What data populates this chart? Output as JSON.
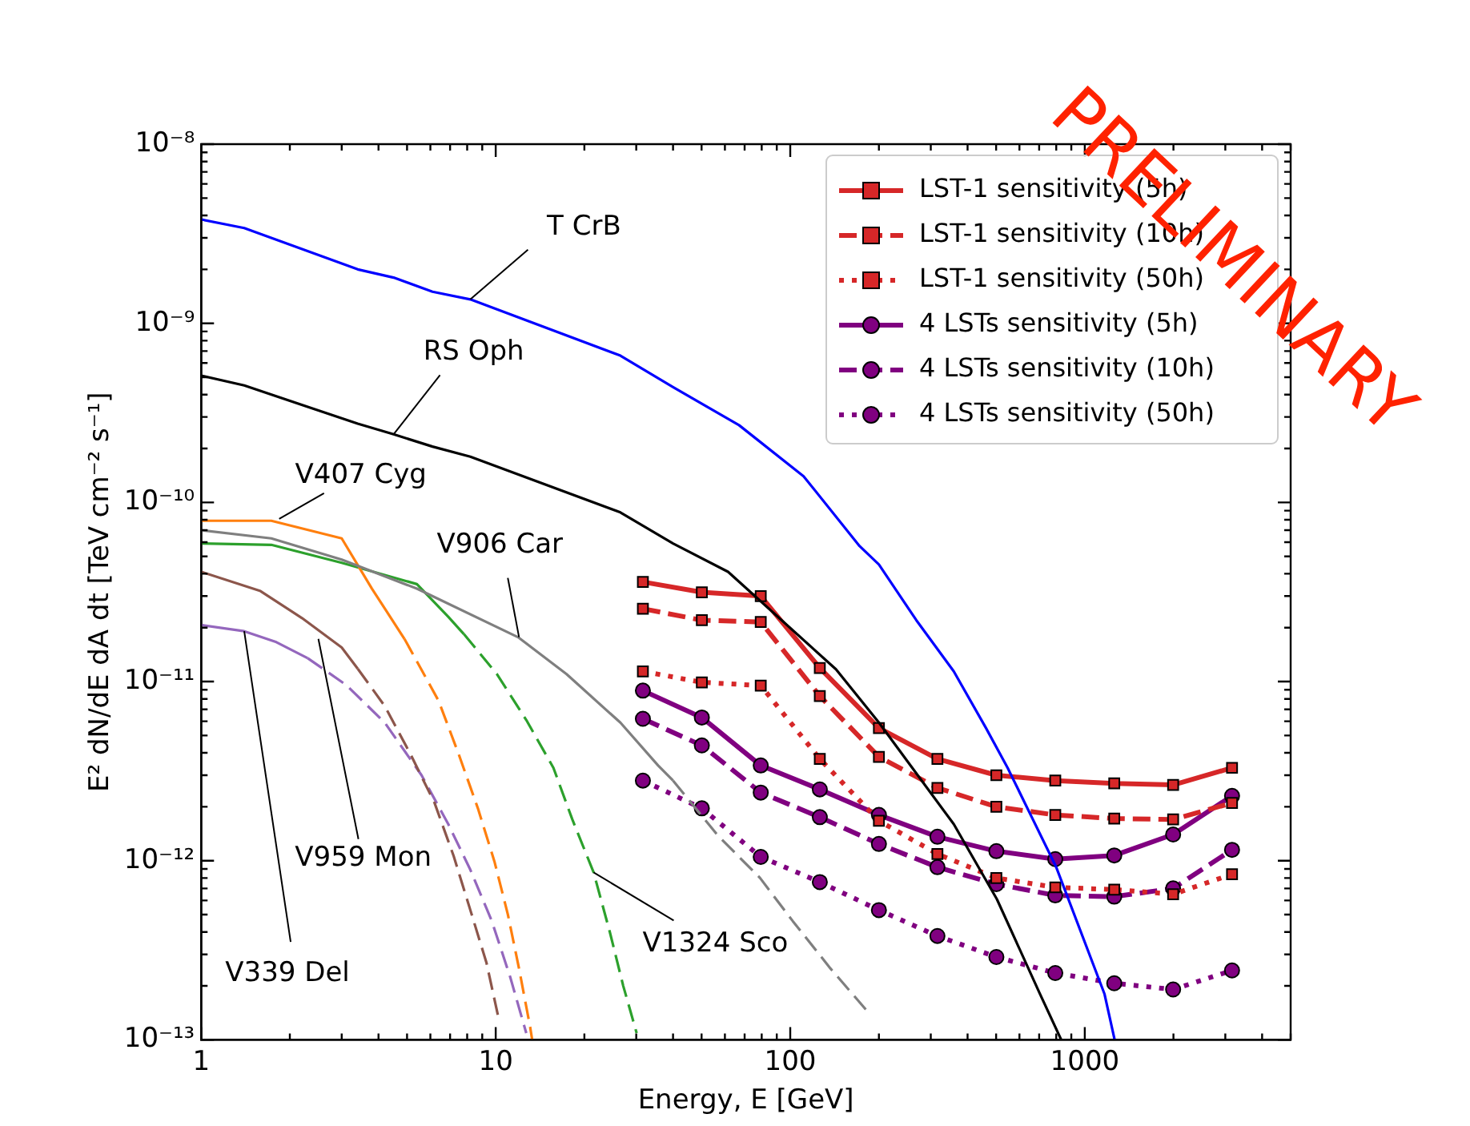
{
  "chart_data": {
    "type": "line",
    "xlabel": "Energy, E [GeV]",
    "ylabel": "E² dN/dE dA dt [TeV cm⁻² s⁻¹]",
    "log": "xy",
    "legend": "top right",
    "xlim": [
      1,
      5000
    ],
    "ylim": [
      1e-13,
      1e-08
    ],
    "xticks": [
      1,
      {
        "value": 2,
        "label": null
      },
      {
        "value": 3,
        "label": null
      },
      {
        "value": 4,
        "label": null
      },
      {
        "value": 5,
        "label": null
      },
      {
        "value": 6,
        "label": null
      },
      {
        "value": 7,
        "label": null
      },
      {
        "value": 8,
        "label": null
      },
      {
        "value": 9,
        "label": null
      },
      10,
      {
        "value": 20,
        "label": null
      },
      {
        "value": 30,
        "label": null
      },
      {
        "value": 40,
        "label": null
      },
      {
        "value": 50,
        "label": null
      },
      {
        "value": 60,
        "label": null
      },
      {
        "value": 70,
        "label": null
      },
      {
        "value": 80,
        "label": null
      },
      {
        "value": 90,
        "label": null
      },
      100,
      {
        "value": 200,
        "label": null
      },
      {
        "value": 300,
        "label": null
      },
      {
        "value": 400,
        "label": null
      },
      {
        "value": 500,
        "label": null
      },
      {
        "value": 600,
        "label": null
      },
      {
        "value": 700,
        "label": null
      },
      {
        "value": 800,
        "label": null
      },
      {
        "value": 900,
        "label": null
      },
      1000,
      {
        "value": 2000,
        "label": null
      },
      {
        "value": 3000,
        "label": null
      },
      {
        "value": 4000,
        "label": null
      },
      {
        "value": 5000,
        "label": null
      }
    ],
    "yticks": [
      {
        "value": 1e-13,
        "label": "10⁻¹³"
      },
      {
        "value": 2e-13,
        "label": null
      },
      {
        "value": 3e-13,
        "label": null
      },
      {
        "value": 4e-13,
        "label": null
      },
      {
        "value": 5e-13,
        "label": null
      },
      {
        "value": 6e-13,
        "label": null
      },
      {
        "value": 7e-13,
        "label": null
      },
      {
        "value": 8e-13,
        "label": null
      },
      {
        "value": 9e-13,
        "label": null
      },
      {
        "value": 1e-12,
        "label": "10⁻¹²"
      },
      {
        "value": 2e-12,
        "label": null
      },
      {
        "value": 3e-12,
        "label": null
      },
      {
        "value": 4e-12,
        "label": null
      },
      {
        "value": 5e-12,
        "label": null
      },
      {
        "value": 6e-12,
        "label": null
      },
      {
        "value": 7e-12,
        "label": null
      },
      {
        "value": 8e-12,
        "label": null
      },
      {
        "value": 9e-12,
        "label": null
      },
      {
        "value": 1e-11,
        "label": "10⁻¹¹"
      },
      {
        "value": 2e-11,
        "label": null
      },
      {
        "value": 3e-11,
        "label": null
      },
      {
        "value": 4e-11,
        "label": null
      },
      {
        "value": 5e-11,
        "label": null
      },
      {
        "value": 6e-11,
        "label": null
      },
      {
        "value": 7e-11,
        "label": null
      },
      {
        "value": 8e-11,
        "label": null
      },
      {
        "value": 9e-11,
        "label": null
      },
      {
        "value": 1e-10,
        "label": "10⁻¹⁰"
      },
      {
        "value": 2e-10,
        "label": null
      },
      {
        "value": 3e-10,
        "label": null
      },
      {
        "value": 4e-10,
        "label": null
      },
      {
        "value": 5e-10,
        "label": null
      },
      {
        "value": 6e-10,
        "label": null
      },
      {
        "value": 7e-10,
        "label": null
      },
      {
        "value": 8e-10,
        "label": null
      },
      {
        "value": 9e-10,
        "label": null
      },
      {
        "value": 1e-09,
        "label": "10⁻⁹"
      },
      {
        "value": 2e-09,
        "label": null
      },
      {
        "value": 3e-09,
        "label": null
      },
      {
        "value": 4e-09,
        "label": null
      },
      {
        "value": 5e-09,
        "label": null
      },
      {
        "value": 6e-09,
        "label": null
      },
      {
        "value": 7e-09,
        "label": null
      },
      {
        "value": 8e-09,
        "label": null
      },
      {
        "value": 9e-09,
        "label": null
      },
      {
        "value": 1e-08,
        "label": "10⁻⁸"
      }
    ],
    "series": [
      {
        "color": "#0000ff",
        "marker": "none",
        "line_style": "solid",
        "x": [
          1,
          1.4,
          3.4,
          4.5,
          6.1,
          8.2,
          26.5,
          40,
          67,
          111,
          172,
          200,
          268,
          359,
          462,
          547,
          800,
          1167,
          1263
        ],
        "values": [
          3.8e-09,
          3.4e-09,
          2e-09,
          1.8e-09,
          1.5e-09,
          1.36e-09,
          6.6e-10,
          4.4e-10,
          2.7e-10,
          1.4e-10,
          5.7e-11,
          4.5e-11,
          2.2e-11,
          1.14e-11,
          5.5e-12,
          3.3e-12,
          9.2e-13,
          1.8e-13,
          1e-13
        ]
      },
      {
        "color": "#000000",
        "marker": "none",
        "line_style": "solid",
        "x": [
          1,
          1.4,
          3.4,
          4.5,
          6.1,
          8.2,
          26.5,
          40,
          61.5,
          143,
          200,
          359,
          503,
          705,
          832
        ],
        "values": [
          5.1e-10,
          4.5e-10,
          2.75e-10,
          2.4e-10,
          2.05e-10,
          1.8e-10,
          8.8e-11,
          5.9e-11,
          4.1e-11,
          1.17e-11,
          5.9e-12,
          1.6e-12,
          6.1e-13,
          1.8e-13,
          1e-13
        ]
      },
      {
        "color": "#7f7f7f",
        "marker": "none",
        "line_style": "solid",
        "x": [
          1,
          1.73,
          3.0,
          5.4,
          11.9,
          17.4,
          26.5,
          35.6,
          40
        ],
        "values": [
          7e-11,
          6.3e-11,
          4.8e-11,
          3.3e-11,
          1.77e-11,
          1.1e-11,
          5.9e-12,
          3.4e-12,
          2.8e-12
        ]
      },
      {
        "color": "#7f7f7f",
        "marker": "none",
        "line_style": "dashed",
        "x": [
          40,
          56.6,
          79,
          102,
          137,
          183
        ],
        "values": [
          2.8e-12,
          1.39e-12,
          8e-13,
          4.6e-13,
          2.5e-13,
          1.44e-13
        ]
      },
      {
        "color": "#ff7f0e",
        "marker": "none",
        "line_style": "solid",
        "x": [
          1,
          1.73,
          3.0,
          3.8,
          4.9
        ],
        "values": [
          7.9e-11,
          7.9e-11,
          6.3e-11,
          3.3e-11,
          1.73e-11
        ]
      },
      {
        "color": "#ff7f0e",
        "marker": "none",
        "line_style": "dashed",
        "x": [
          4.9,
          6.4,
          7.5,
          8.7,
          9.9,
          11,
          12,
          13.1,
          13.3
        ],
        "values": [
          1.73e-11,
          7.8e-12,
          3.9e-12,
          1.96e-12,
          9.9e-13,
          5e-13,
          2.5e-13,
          1.17e-13,
          1e-13
        ]
      },
      {
        "color": "#2ca02c",
        "marker": "none",
        "line_style": "solid",
        "x": [
          1,
          1.73,
          3.0,
          5.4,
          6.9,
          7.8
        ],
        "values": [
          5.9e-11,
          5.8e-11,
          4.6e-11,
          3.5e-11,
          2.3e-11,
          1.84e-11
        ]
      },
      {
        "color": "#2ca02c",
        "marker": "none",
        "line_style": "dashed",
        "x": [
          7.8,
          10.1,
          12.7,
          15.7,
          18.2,
          21.5,
          24.4,
          27.1,
          30.1
        ],
        "values": [
          1.84e-11,
          1.1e-11,
          6.1e-12,
          3.3e-12,
          1.7e-12,
          8.6e-13,
          4e-13,
          2e-13,
          1.09e-13
        ]
      },
      {
        "color": "#8c564b",
        "marker": "none",
        "line_style": "solid",
        "x": [
          1,
          1.59,
          2.2,
          3.0,
          3.4
        ],
        "values": [
          4.1e-11,
          3.2e-11,
          2.26e-11,
          1.55e-11,
          1.18e-11
        ]
      },
      {
        "color": "#8c564b",
        "marker": "none",
        "line_style": "dashed",
        "x": [
          3.4,
          4.2,
          5.15,
          6.2,
          7.2,
          8.2,
          9.3,
          10.3
        ],
        "values": [
          1.18e-11,
          7.3e-12,
          3.9e-12,
          2.1e-12,
          1.06e-12,
          5.3e-13,
          2.7e-13,
          1.25e-13
        ]
      },
      {
        "color": "#9467bd",
        "marker": "none",
        "line_style": "solid",
        "x": [
          1,
          1.4,
          1.8,
          2.3
        ],
        "values": [
          2.07e-11,
          1.91e-11,
          1.66e-11,
          1.35e-11
        ]
      },
      {
        "color": "#9467bd",
        "marker": "none",
        "line_style": "dashed",
        "x": [
          2.3,
          3.1,
          4.2,
          5.6,
          6.9,
          8.2,
          9.7,
          11.2,
          12.7
        ],
        "values": [
          1.35e-11,
          9.6e-12,
          5.9e-12,
          3e-12,
          1.6e-12,
          8.9e-13,
          4.6e-13,
          2.24e-13,
          1.09e-13
        ]
      },
      {
        "name": "LST-1 sensitivity (5h)",
        "color": "#d62728",
        "marker": "square",
        "line_style": "solid",
        "x": [
          31.6,
          50.1,
          79.4,
          126,
          200,
          316,
          501,
          794,
          1259,
          1995,
          3162
        ],
        "values": [
          3.6e-11,
          3.15e-11,
          3e-11,
          1.19e-11,
          5.5e-12,
          3.7e-12,
          3e-12,
          2.8e-12,
          2.7e-12,
          2.65e-12,
          3.3e-12
        ]
      },
      {
        "name": "LST-1 sensitivity (10h)",
        "color": "#d62728",
        "marker": "square",
        "line_style": "dashed",
        "x": [
          31.6,
          50.1,
          79.4,
          126,
          200,
          316,
          501,
          794,
          1259,
          1995,
          3162
        ],
        "values": [
          2.55e-11,
          2.2e-11,
          2.15e-11,
          8.3e-12,
          3.8e-12,
          2.55e-12,
          2e-12,
          1.8e-12,
          1.72e-12,
          1.7e-12,
          2.1e-12
        ]
      },
      {
        "name": "LST-1 sensitivity (50h)",
        "color": "#d62728",
        "marker": "square",
        "line_style": "dotted",
        "x": [
          31.6,
          50.1,
          79.4,
          126,
          200,
          316,
          501,
          794,
          1259,
          1995,
          3162
        ],
        "values": [
          1.14e-11,
          9.9e-12,
          9.5e-12,
          3.7e-12,
          1.67e-12,
          1.09e-12,
          8e-13,
          7.1e-13,
          6.9e-13,
          6.5e-13,
          8.4e-13
        ]
      },
      {
        "name": "4 LSTs sensitivity (5h)",
        "color": "#800080",
        "marker": "circle",
        "line_style": "solid",
        "x": [
          31.6,
          50.1,
          79.4,
          126,
          200,
          316,
          501,
          794,
          1259,
          1995,
          3162
        ],
        "values": [
          8.9e-12,
          6.3e-12,
          3.4e-12,
          2.5e-12,
          1.8e-12,
          1.36e-12,
          1.13e-12,
          1.02e-12,
          1.07e-12,
          1.4e-12,
          2.3e-12
        ]
      },
      {
        "name": "4 LSTs sensitivity (10h)",
        "color": "#800080",
        "marker": "circle",
        "line_style": "dashed",
        "x": [
          31.6,
          50.1,
          79.4,
          126,
          200,
          316,
          501,
          794,
          1259,
          1995,
          3162
        ],
        "values": [
          6.2e-12,
          4.4e-12,
          2.4e-12,
          1.75e-12,
          1.24e-12,
          9.2e-13,
          7.4e-13,
          6.4e-13,
          6.3e-13,
          7e-13,
          1.15e-12
        ]
      },
      {
        "name": "4 LSTs sensitivity (50h)",
        "color": "#800080",
        "marker": "circle",
        "line_style": "dotted",
        "x": [
          31.6,
          50.1,
          79.4,
          126,
          200,
          316,
          501,
          794,
          1259,
          1995,
          3162
        ],
        "values": [
          2.8e-12,
          1.96e-12,
          1.05e-12,
          7.6e-13,
          5.3e-13,
          3.8e-13,
          2.9e-13,
          2.36e-13,
          2.07e-13,
          1.91e-13,
          2.44e-13
        ]
      }
    ],
    "annotations": [
      {
        "text": "T CrB",
        "x": 8.2,
        "y": 1.36e-09
      },
      {
        "text": "RS Oph",
        "x": 4.5,
        "y": 2.4e-10
      },
      {
        "text": "V407 Cyg",
        "x": 1.84,
        "y": 8.1e-11
      },
      {
        "text": "V906 Car",
        "x": 12,
        "y": 1.77e-11
      },
      {
        "text": "V959 Mon",
        "x": 2.5,
        "y": 1.73e-11
      },
      {
        "text": "V339 Del",
        "x": 1.4,
        "y": 1.91e-11
      },
      {
        "text": "V1324 Sco",
        "x": 21.5,
        "y": 8.6e-13
      },
      "PRELIMINARY"
    ]
  }
}
